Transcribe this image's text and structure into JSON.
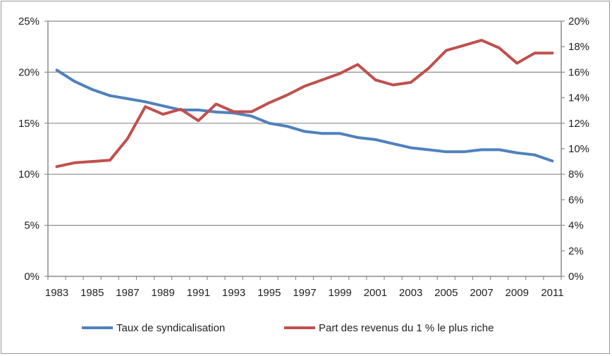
{
  "chart_data": {
    "type": "line",
    "title": "",
    "categories": [
      "1983",
      "1984",
      "1985",
      "1986",
      "1987",
      "1988",
      "1989",
      "1990",
      "1991",
      "1992",
      "1993",
      "1994",
      "1995",
      "1996",
      "1997",
      "1998",
      "1999",
      "2000",
      "2001",
      "2002",
      "2003",
      "2004",
      "2005",
      "2006",
      "2007",
      "2008",
      "2009",
      "2010",
      "2011"
    ],
    "x_tick_labels": [
      "1983",
      "1985",
      "1987",
      "1989",
      "1991",
      "1993",
      "1995",
      "1997",
      "1999",
      "2001",
      "2003",
      "2005",
      "2007",
      "2009",
      "2011"
    ],
    "y_left": {
      "ylim": [
        0,
        25
      ],
      "ticks": [
        "0%",
        "5%",
        "10%",
        "15%",
        "20%",
        "25%"
      ],
      "tick_values": [
        0,
        5,
        10,
        15,
        20,
        25
      ]
    },
    "y_right": {
      "ylim": [
        0,
        20
      ],
      "ticks": [
        "0%",
        "2%",
        "4%",
        "6%",
        "8%",
        "10%",
        "12%",
        "14%",
        "16%",
        "18%",
        "20%"
      ],
      "tick_values": [
        0,
        2,
        4,
        6,
        8,
        10,
        12,
        14,
        16,
        18,
        20
      ]
    },
    "grid": true,
    "legend_position": "bottom",
    "series": [
      {
        "name": "Taux de syndicalisation",
        "axis": "left",
        "color": "#4f81bd",
        "values": [
          20.2,
          19.1,
          18.3,
          17.7,
          17.4,
          17.1,
          16.7,
          16.3,
          16.3,
          16.1,
          16.0,
          15.7,
          15.0,
          14.7,
          14.2,
          14.0,
          14.0,
          13.6,
          13.4,
          13.0,
          12.6,
          12.4,
          12.2,
          12.2,
          12.4,
          12.4,
          12.1,
          11.9,
          11.3
        ]
      },
      {
        "name": "Part des revenus du 1 % le plus riche",
        "axis": "right",
        "color": "#c0504d",
        "values": [
          8.6,
          8.9,
          9.0,
          9.1,
          10.8,
          13.3,
          12.7,
          13.1,
          12.2,
          13.5,
          12.9,
          12.9,
          13.6,
          14.2,
          14.9,
          15.4,
          15.9,
          16.6,
          15.4,
          15.0,
          15.2,
          16.3,
          17.7,
          18.1,
          18.5,
          17.9,
          16.7,
          17.5,
          17.5
        ]
      }
    ]
  }
}
